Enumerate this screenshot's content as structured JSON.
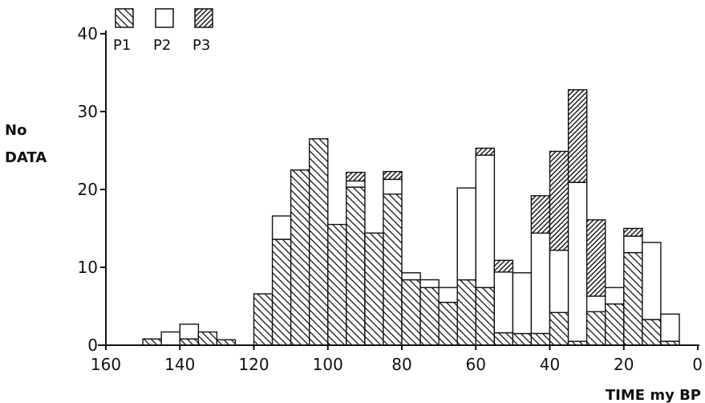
{
  "chart_data": {
    "type": "bar",
    "stacked": true,
    "xlabel": "TIME my BP",
    "ylabel_line1": "No",
    "ylabel_line2": "DATA",
    "xlim": [
      160,
      0
    ],
    "ylim": [
      0,
      40
    ],
    "x_ticks": [
      160,
      140,
      120,
      100,
      80,
      60,
      40,
      20,
      0
    ],
    "x_tick_labels": [
      "160",
      "140",
      "120",
      "100",
      "80",
      "60",
      "40",
      "20",
      "0"
    ],
    "y_ticks": [
      0,
      10,
      20,
      30,
      40
    ],
    "y_tick_labels": [
      "0",
      "10",
      "20",
      "30",
      "40"
    ],
    "bin_width": 5,
    "legend_position": "top-left",
    "series": [
      {
        "name": "P1",
        "pattern": "dense-back-diagonal",
        "values": [
          {
            "x": 145,
            "y": 0.8
          },
          {
            "x": 140,
            "y": 0
          },
          {
            "x": 135,
            "y": 0.8
          },
          {
            "x": 130,
            "y": 1.7
          },
          {
            "x": 125,
            "y": 0.7
          },
          {
            "x": 115,
            "y": 6.6
          },
          {
            "x": 110,
            "y": 13.6
          },
          {
            "x": 105,
            "y": 22.5
          },
          {
            "x": 100,
            "y": 26.5
          },
          {
            "x": 95,
            "y": 15.5
          },
          {
            "x": 90,
            "y": 20.3
          },
          {
            "x": 85,
            "y": 14.4
          },
          {
            "x": 80,
            "y": 19.4
          },
          {
            "x": 75,
            "y": 8.4
          },
          {
            "x": 70,
            "y": 7.4
          },
          {
            "x": 65,
            "y": 5.5
          },
          {
            "x": 60,
            "y": 8.4
          },
          {
            "x": 55,
            "y": 7.4
          },
          {
            "x": 50,
            "y": 1.6
          },
          {
            "x": 45,
            "y": 1.5
          },
          {
            "x": 40,
            "y": 1.5
          },
          {
            "x": 35,
            "y": 4.2
          },
          {
            "x": 30,
            "y": 0.5
          },
          {
            "x": 25,
            "y": 4.3
          },
          {
            "x": 20,
            "y": 5.3
          },
          {
            "x": 15,
            "y": 11.9
          },
          {
            "x": 10,
            "y": 3.3
          },
          {
            "x": 5,
            "y": 0.5
          }
        ]
      },
      {
        "name": "P2",
        "pattern": "blank",
        "values": [
          {
            "x": 145,
            "y": 0
          },
          {
            "x": 140,
            "y": 1.7
          },
          {
            "x": 135,
            "y": 1.9
          },
          {
            "x": 130,
            "y": 0
          },
          {
            "x": 125,
            "y": 0
          },
          {
            "x": 115,
            "y": 0
          },
          {
            "x": 110,
            "y": 3.0
          },
          {
            "x": 105,
            "y": 0
          },
          {
            "x": 100,
            "y": 0
          },
          {
            "x": 95,
            "y": 0
          },
          {
            "x": 90,
            "y": 0.8
          },
          {
            "x": 85,
            "y": 0
          },
          {
            "x": 80,
            "y": 1.9
          },
          {
            "x": 75,
            "y": 0.9
          },
          {
            "x": 70,
            "y": 1.0
          },
          {
            "x": 65,
            "y": 1.9
          },
          {
            "x": 60,
            "y": 11.8
          },
          {
            "x": 55,
            "y": 17.0
          },
          {
            "x": 50,
            "y": 7.8
          },
          {
            "x": 45,
            "y": 7.8
          },
          {
            "x": 40,
            "y": 12.9
          },
          {
            "x": 35,
            "y": 8.0
          },
          {
            "x": 30,
            "y": 20.4
          },
          {
            "x": 25,
            "y": 2.0
          },
          {
            "x": 20,
            "y": 2.1
          },
          {
            "x": 15,
            "y": 2.1
          },
          {
            "x": 10,
            "y": 9.9
          },
          {
            "x": 5,
            "y": 3.5
          }
        ]
      },
      {
        "name": "P3",
        "pattern": "sparse-forward-diagonal",
        "values": [
          {
            "x": 145,
            "y": 0
          },
          {
            "x": 140,
            "y": 0
          },
          {
            "x": 135,
            "y": 0
          },
          {
            "x": 130,
            "y": 0
          },
          {
            "x": 125,
            "y": 0
          },
          {
            "x": 115,
            "y": 0
          },
          {
            "x": 110,
            "y": 0
          },
          {
            "x": 105,
            "y": 0
          },
          {
            "x": 100,
            "y": 0
          },
          {
            "x": 95,
            "y": 0
          },
          {
            "x": 90,
            "y": 1.1
          },
          {
            "x": 85,
            "y": 0
          },
          {
            "x": 80,
            "y": 1.0
          },
          {
            "x": 75,
            "y": 0
          },
          {
            "x": 70,
            "y": 0
          },
          {
            "x": 65,
            "y": 0
          },
          {
            "x": 60,
            "y": 0
          },
          {
            "x": 55,
            "y": 0.9
          },
          {
            "x": 50,
            "y": 1.5
          },
          {
            "x": 45,
            "y": 0
          },
          {
            "x": 40,
            "y": 4.8
          },
          {
            "x": 35,
            "y": 12.7
          },
          {
            "x": 30,
            "y": 11.9
          },
          {
            "x": 25,
            "y": 9.8
          },
          {
            "x": 20,
            "y": 0
          },
          {
            "x": 15,
            "y": 1.0
          },
          {
            "x": 10,
            "y": 0
          },
          {
            "x": 5,
            "y": 0
          }
        ]
      }
    ]
  }
}
